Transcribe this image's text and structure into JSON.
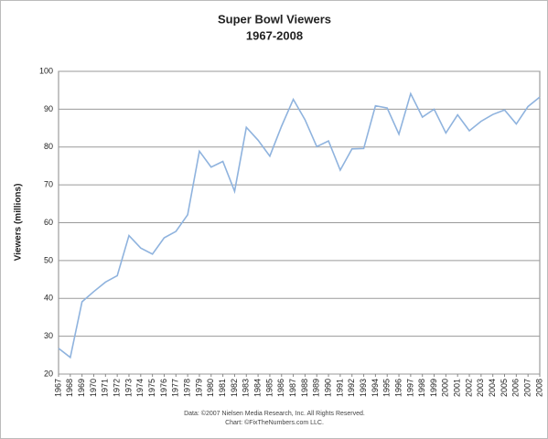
{
  "chart_data": {
    "type": "line",
    "title": "Super Bowl Viewers",
    "subtitle": "1967-2008",
    "y_label": "Viewers (millions)",
    "notes": [
      "Data: ©2007 Nielsen Media Research, Inc. All Rights Reserved.",
      "Chart: ©FixTheNumbers.com LLC."
    ],
    "categories": [
      "1967",
      "1968",
      "1969",
      "1970",
      "1971",
      "1972",
      "1973",
      "1974",
      "1975",
      "1976",
      "1977",
      "1978",
      "1979",
      "1980",
      "1981",
      "1982",
      "1983",
      "1984",
      "1985",
      "1986",
      "1987",
      "1988",
      "1989",
      "1990",
      "1991",
      "1992",
      "1993",
      "1994",
      "1995",
      "1996",
      "1997",
      "1998",
      "1999",
      "2000",
      "2001",
      "2002",
      "2003",
      "2004",
      "2005",
      "2006",
      "2007",
      "2008"
    ],
    "series": [
      {
        "name": "Viewers",
        "color": "#8fb3de",
        "values": [
          26.8,
          24.4,
          39.1,
          41.8,
          44.3,
          46,
          56.6,
          53.3,
          51.7,
          56,
          57.7,
          62.1,
          78.9,
          74.7,
          76.2,
          68.3,
          85.2,
          81.8,
          77.6,
          85.5,
          92.6,
          87.2,
          80.1,
          81.6,
          73.9,
          79.5,
          79.6,
          90.9,
          90.3,
          83.4,
          94.1,
          87.9,
          90,
          83.7,
          88.5,
          84.3,
          86.8,
          88.6,
          89.8,
          86.1,
          90.7,
          93.2
        ]
      }
    ],
    "ylim": [
      20,
      100
    ],
    "yticks": [
      20,
      30,
      40,
      50,
      60,
      70,
      80,
      90,
      100
    ],
    "grid": true
  }
}
